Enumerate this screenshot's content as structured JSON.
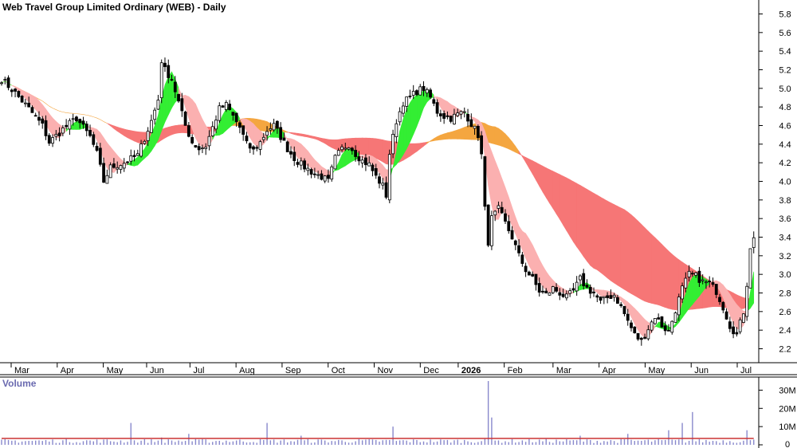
{
  "chart_data": [
    {
      "type": "candlestick",
      "title": "Web Travel Group Limited Ordinary (WEB) - Daily",
      "y_ticks": [
        "5.8",
        "5.6",
        "5.4",
        "5.2",
        "5.0",
        "4.8",
        "4.6",
        "4.4",
        "4.2",
        "4.0",
        "3.8",
        "3.6",
        "3.4",
        "3.2",
        "3.0",
        "2.8",
        "2.6",
        "2.4",
        "2.2"
      ],
      "ylim": [
        2.05,
        5.95
      ],
      "x_labels": [
        "Mar",
        "Apr",
        "May",
        "Jun",
        "Jul",
        "Aug",
        "Sep",
        "Oct",
        "Nov",
        "Dec",
        "2026",
        "Feb",
        "Mar",
        "Apr",
        "May",
        "Jun",
        "Jul"
      ],
      "price_path": [
        [
          0,
          5.1
        ],
        [
          4,
          4.95
        ],
        [
          8,
          4.78
        ],
        [
          12,
          4.6
        ],
        [
          14,
          4.42
        ],
        [
          18,
          4.56
        ],
        [
          22,
          4.68
        ],
        [
          26,
          4.48
        ],
        [
          28,
          4.3
        ],
        [
          30,
          4.0
        ],
        [
          32,
          4.15
        ],
        [
          36,
          4.2
        ],
        [
          40,
          4.28
        ],
        [
          44,
          4.65
        ],
        [
          46,
          4.88
        ],
        [
          47,
          5.3
        ],
        [
          48,
          5.2
        ],
        [
          50,
          5.1
        ],
        [
          52,
          4.85
        ],
        [
          54,
          4.6
        ],
        [
          56,
          4.42
        ],
        [
          58,
          4.35
        ],
        [
          60,
          4.38
        ],
        [
          62,
          4.58
        ],
        [
          64,
          4.78
        ],
        [
          66,
          4.82
        ],
        [
          68,
          4.7
        ],
        [
          70,
          4.58
        ],
        [
          72,
          4.4
        ],
        [
          74,
          4.33
        ],
        [
          76,
          4.42
        ],
        [
          78,
          4.55
        ],
        [
          80,
          4.6
        ],
        [
          82,
          4.48
        ],
        [
          84,
          4.35
        ],
        [
          86,
          4.25
        ],
        [
          88,
          4.18
        ],
        [
          90,
          4.13
        ],
        [
          92,
          4.08
        ],
        [
          94,
          4.05
        ],
        [
          96,
          4.0
        ],
        [
          98,
          4.25
        ],
        [
          100,
          4.35
        ],
        [
          102,
          4.4
        ],
        [
          104,
          4.3
        ],
        [
          106,
          4.22
        ],
        [
          108,
          4.18
        ],
        [
          110,
          4.05
        ],
        [
          112,
          3.95
        ],
        [
          113,
          3.85
        ],
        [
          114,
          4.3
        ],
        [
          116,
          4.65
        ],
        [
          118,
          4.85
        ],
        [
          120,
          4.9
        ],
        [
          122,
          4.97
        ],
        [
          124,
          5.0
        ],
        [
          126,
          4.9
        ],
        [
          128,
          4.75
        ],
        [
          130,
          4.7
        ],
        [
          132,
          4.68
        ],
        [
          134,
          4.72
        ],
        [
          136,
          4.75
        ],
        [
          138,
          4.62
        ],
        [
          140,
          4.5
        ],
        [
          141,
          4.28
        ],
        [
          142,
          3.7
        ],
        [
          143,
          3.35
        ],
        [
          144,
          3.6
        ],
        [
          146,
          3.7
        ],
        [
          148,
          3.55
        ],
        [
          150,
          3.4
        ],
        [
          152,
          3.2
        ],
        [
          154,
          3.05
        ],
        [
          156,
          2.95
        ],
        [
          158,
          2.82
        ],
        [
          160,
          2.78
        ],
        [
          162,
          2.85
        ],
        [
          164,
          2.8
        ],
        [
          166,
          2.75
        ],
        [
          168,
          2.82
        ],
        [
          170,
          2.95
        ],
        [
          172,
          2.85
        ],
        [
          174,
          2.8
        ],
        [
          176,
          2.7
        ],
        [
          178,
          2.75
        ],
        [
          180,
          2.78
        ],
        [
          182,
          2.65
        ],
        [
          184,
          2.5
        ],
        [
          186,
          2.35
        ],
        [
          188,
          2.28
        ],
        [
          190,
          2.42
        ],
        [
          192,
          2.55
        ],
        [
          194,
          2.45
        ],
        [
          196,
          2.38
        ],
        [
          198,
          2.62
        ],
        [
          200,
          2.85
        ],
        [
          202,
          3.0
        ],
        [
          204,
          2.98
        ],
        [
          206,
          2.92
        ],
        [
          208,
          2.9
        ],
        [
          210,
          2.82
        ],
        [
          212,
          2.65
        ],
        [
          214,
          2.45
        ],
        [
          216,
          2.35
        ],
        [
          218,
          2.6
        ],
        [
          219,
          2.9
        ],
        [
          220,
          3.3
        ],
        [
          221,
          3.38
        ]
      ],
      "volume": {
        "label": "Volume",
        "y_ticks": [
          "30M",
          "20M",
          "10M",
          "0"
        ],
        "ylim": [
          0,
          35
        ],
        "spikes": [
          [
            38,
            12
          ],
          [
            47,
            4
          ],
          [
            55,
            6
          ],
          [
            78,
            12
          ],
          [
            88,
            5
          ],
          [
            115,
            10
          ],
          [
            143,
            35
          ],
          [
            144,
            15
          ],
          [
            170,
            5
          ],
          [
            184,
            6
          ],
          [
            196,
            8
          ],
          [
            200,
            12
          ],
          [
            203,
            18
          ],
          [
            219,
            8
          ]
        ],
        "base": 2.5,
        "average": 3.5
      }
    }
  ]
}
